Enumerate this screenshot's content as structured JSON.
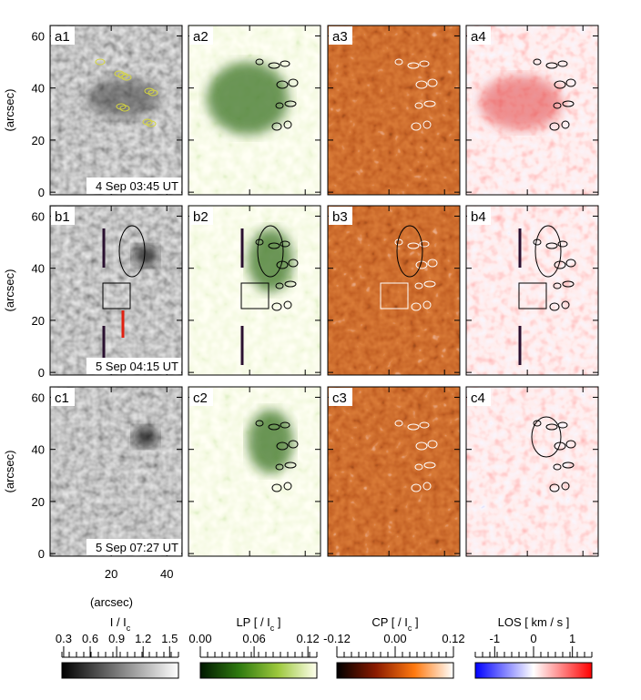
{
  "chart_data": {
    "type": "map-panels",
    "panels": [
      [
        "a1",
        "a2",
        "a3",
        "a4"
      ],
      [
        "b1",
        "b2",
        "b3",
        "b4"
      ],
      [
        "c1",
        "c2",
        "c3",
        "c4"
      ]
    ],
    "row_labels": [
      "4 Sep 03:45 UT",
      "5 Sep 04:15 UT",
      "5 Sep 07:27 UT"
    ],
    "ylabel": "(arcsec)",
    "xlabel": "(arcsec)",
    "xlim": [
      -2,
      45.5
    ],
    "xticks": [
      20,
      40
    ],
    "ylim": [
      -1,
      64
    ],
    "yticks": [
      0,
      20,
      40,
      60
    ],
    "colorbars": [
      {
        "title": [
          "I / I",
          "c"
        ],
        "lim": [
          0.28,
          1.6
        ],
        "ticks": [
          0.3,
          0.6,
          0.9,
          1.2,
          1.5
        ],
        "colors": [
          "#000000",
          "#808080",
          "#ffffff"
        ]
      },
      {
        "title": [
          "LP [ / I",
          "c",
          " ]"
        ],
        "lim": [
          0,
          0.13
        ],
        "ticks": [
          {
            "value": 0,
            "label": "0.00"
          },
          0.06,
          0.12
        ],
        "colors": [
          "#001800",
          "#2f7a10",
          "#9cc83c",
          "#ffffee"
        ]
      },
      {
        "title": [
          "CP [ / I",
          "c",
          " ]"
        ],
        "lim": [
          -0.12,
          0.12
        ],
        "ticks": [
          -0.12,
          {
            "value": 0,
            "label": "0.00"
          },
          0.12
        ],
        "colors": [
          "#000000",
          "#8a1a00",
          "#ff7a10",
          "#ffffff"
        ]
      },
      {
        "title": [
          "LOS [ km / s ]"
        ],
        "lim": [
          -1.5,
          1.5
        ],
        "ticks": [
          -1,
          0,
          1
        ],
        "colors": [
          "#0000ff",
          "#ffffff",
          "#ff0000"
        ]
      }
    ]
  }
}
